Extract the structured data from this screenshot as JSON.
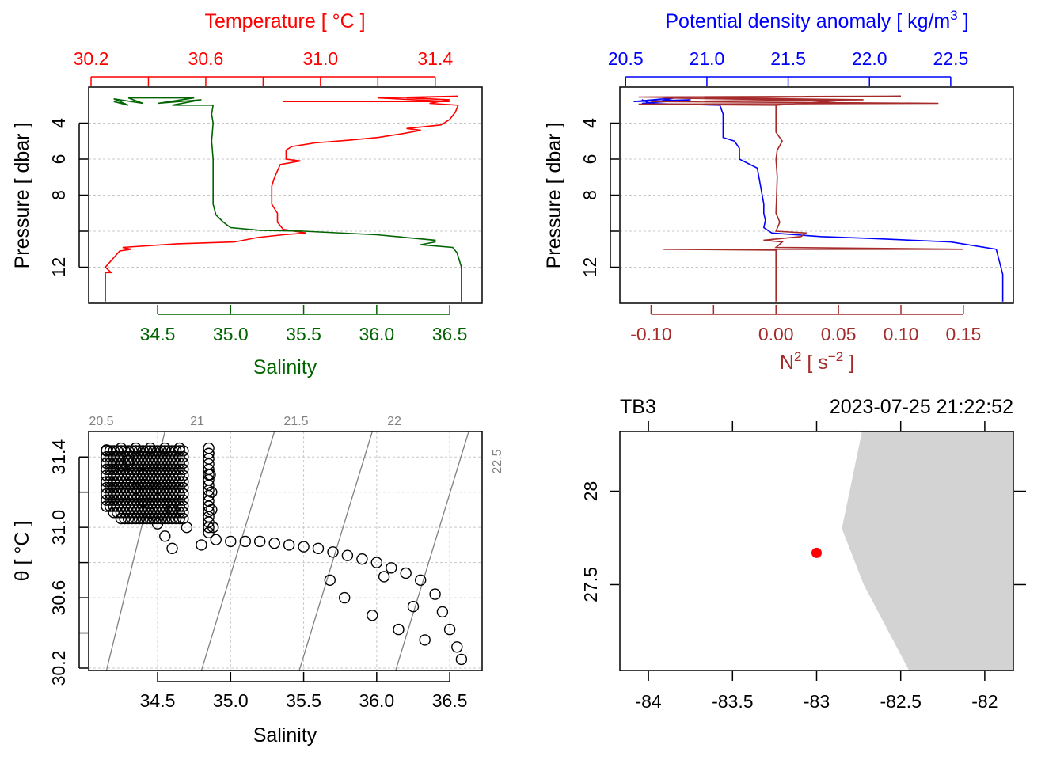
{
  "colors": {
    "temperature": "#ff0000",
    "salinity": "#006400",
    "density": "#0000ff",
    "n2": "#a52a2a",
    "grid": "#c8c8c8",
    "isopycnal": "#808080",
    "land": "#d3d3d3",
    "station": "#ff0000"
  },
  "chart_data": [
    {
      "id": "temp-sal-profile",
      "type": "line",
      "title": "Temperature [ °C ]",
      "top_axis": {
        "label": "Temperature [ °C ]",
        "ticks": [
          "30.2",
          "30.6",
          "31.0",
          "31.4"
        ],
        "tick_values": [
          30.2,
          30.6,
          31.0,
          31.4
        ],
        "range": [
          30.2,
          31.5
        ]
      },
      "bottom_axis": {
        "label": "Salinity",
        "ticks": [
          "34.5",
          "35.0",
          "35.5",
          "36.0",
          "36.5"
        ],
        "tick_values": [
          34.5,
          35.0,
          35.5,
          36.0,
          36.5
        ],
        "range": [
          34.05,
          36.7
        ]
      },
      "y_axis": {
        "label": "Pressure [ dbar ]",
        "ticks": [
          "4",
          "6",
          "8",
          "12"
        ],
        "tick_values": [
          4,
          6,
          8,
          12
        ],
        "range": [
          14.0,
          2.0
        ],
        "inverted": true
      },
      "series": [
        {
          "name": "Temperature",
          "points": [
            [
              30.25,
              13.9
            ],
            [
              30.25,
              12.3
            ],
            [
              30.27,
              12.3
            ],
            [
              30.25,
              12.0
            ],
            [
              30.3,
              11.1
            ],
            [
              30.34,
              11.0
            ],
            [
              30.31,
              10.9
            ],
            [
              30.5,
              10.7
            ],
            [
              30.7,
              10.6
            ],
            [
              30.78,
              10.35
            ],
            [
              30.87,
              10.2
            ],
            [
              30.95,
              10.1
            ],
            [
              30.87,
              9.9
            ],
            [
              30.85,
              9.5
            ],
            [
              30.85,
              9.0
            ],
            [
              30.83,
              8.5
            ],
            [
              30.83,
              7.5
            ],
            [
              30.84,
              7.0
            ],
            [
              30.86,
              6.3
            ],
            [
              30.93,
              6.1
            ],
            [
              30.88,
              6.0
            ],
            [
              30.88,
              5.5
            ],
            [
              30.9,
              5.3
            ],
            [
              30.98,
              5.1
            ],
            [
              31.1,
              4.95
            ],
            [
              31.2,
              4.8
            ],
            [
              31.28,
              4.6
            ],
            [
              31.35,
              4.4
            ],
            [
              31.3,
              4.3
            ],
            [
              31.42,
              4.1
            ],
            [
              31.45,
              3.8
            ],
            [
              31.47,
              3.4
            ],
            [
              31.48,
              3.0
            ],
            [
              31.38,
              2.9
            ],
            [
              31.45,
              2.7
            ],
            [
              31.3,
              2.6
            ],
            [
              31.48,
              2.5
            ],
            [
              31.2,
              2.6
            ],
            [
              31.45,
              2.8
            ],
            [
              30.87,
              2.8
            ]
          ]
        },
        {
          "name": "Salinity",
          "points": [
            [
              36.58,
              13.9
            ],
            [
              36.58,
              12.0
            ],
            [
              36.55,
              11.2
            ],
            [
              36.52,
              10.9
            ],
            [
              36.3,
              10.75
            ],
            [
              36.4,
              10.6
            ],
            [
              36.4,
              10.5
            ],
            [
              36.0,
              10.2
            ],
            [
              35.5,
              10.0
            ],
            [
              35.2,
              9.95
            ],
            [
              35.0,
              9.8
            ],
            [
              34.95,
              9.5
            ],
            [
              34.9,
              9.1
            ],
            [
              34.88,
              8.5
            ],
            [
              34.88,
              6.0
            ],
            [
              34.87,
              5.0
            ],
            [
              34.88,
              4.0
            ],
            [
              34.87,
              3.5
            ],
            [
              34.88,
              3.0
            ],
            [
              34.6,
              3.0
            ],
            [
              34.8,
              2.7
            ],
            [
              34.5,
              2.9
            ],
            [
              34.75,
              2.6
            ],
            [
              34.3,
              2.6
            ],
            [
              34.4,
              2.9
            ],
            [
              34.2,
              2.65
            ],
            [
              34.3,
              3.0
            ],
            [
              34.2,
              2.8
            ]
          ]
        }
      ]
    },
    {
      "id": "density-n2-profile",
      "type": "line",
      "top_axis": {
        "label": "Potential density anomaly [ kg/m",
        "label_sup": "3",
        "label_end": " ]",
        "ticks": [
          "20.5",
          "21.0",
          "21.5",
          "22.0",
          "22.5"
        ],
        "tick_values": [
          20.5,
          21.0,
          21.5,
          22.0,
          22.5
        ],
        "range": [
          20.45,
          22.9
        ]
      },
      "bottom_axis": {
        "label": "N",
        "label_sup": "2",
        "label_mid": " [ s",
        "label_sup2": "−2",
        "label_end": " ]",
        "ticks": [
          "-0.10",
          "0.00",
          "0.05",
          "0.10",
          "0.15"
        ],
        "tick_values": [
          -0.1,
          0.0,
          0.05,
          0.1,
          0.15
        ],
        "extra_ticks": [
          -0.05
        ],
        "range": [
          -0.125,
          0.19
        ]
      },
      "y_axis": {
        "label": "Pressure [ dbar ]",
        "ticks": [
          "4",
          "6",
          "8",
          "12"
        ],
        "tick_values": [
          4,
          6,
          8,
          12
        ],
        "range": [
          14.0,
          2.0
        ],
        "inverted": true
      },
      "series": [
        {
          "name": "Potential density anomaly",
          "points": [
            [
              22.82,
              13.9
            ],
            [
              22.82,
              12.4
            ],
            [
              22.8,
              11.7
            ],
            [
              22.78,
              11.0
            ],
            [
              22.5,
              10.6
            ],
            [
              22.0,
              10.4
            ],
            [
              21.7,
              10.3
            ],
            [
              21.4,
              10.1
            ],
            [
              21.35,
              9.8
            ],
            [
              21.36,
              9.4
            ],
            [
              21.35,
              9.0
            ],
            [
              21.35,
              8.5
            ],
            [
              21.33,
              7.5
            ],
            [
              21.31,
              6.5
            ],
            [
              21.2,
              6.0
            ],
            [
              21.2,
              5.4
            ],
            [
              21.17,
              5.0
            ],
            [
              21.1,
              4.8
            ],
            [
              21.1,
              4.3
            ],
            [
              21.1,
              3.5
            ],
            [
              21.08,
              3.0
            ],
            [
              20.6,
              2.9
            ],
            [
              20.9,
              2.7
            ],
            [
              20.55,
              2.8
            ],
            [
              20.8,
              2.6
            ],
            [
              20.65,
              2.9
            ],
            [
              20.6,
              2.7
            ]
          ]
        },
        {
          "name": "N2",
          "points": [
            [
              0.0,
              13.9
            ],
            [
              0.0,
              12.0
            ],
            [
              0.0,
              11.2
            ],
            [
              0.0,
              11.05
            ],
            [
              -0.09,
              11.0
            ],
            [
              0.15,
              11.0
            ],
            [
              0.0,
              10.9
            ],
            [
              0.005,
              10.6
            ],
            [
              -0.01,
              10.5
            ],
            [
              0.02,
              10.3
            ],
            [
              0.024,
              10.1
            ],
            [
              0.0,
              10.0
            ],
            [
              0.003,
              9.5
            ],
            [
              0.0,
              9.0
            ],
            [
              0.001,
              7.0
            ],
            [
              0.0,
              6.0
            ],
            [
              0.001,
              5.5
            ],
            [
              0.005,
              5.0
            ],
            [
              0.0,
              4.5
            ],
            [
              0.0,
              3.5
            ],
            [
              0.0,
              3.0
            ],
            [
              -0.11,
              2.95
            ],
            [
              0.13,
              2.9
            ],
            [
              -0.1,
              2.8
            ],
            [
              0.07,
              2.7
            ],
            [
              -0.11,
              2.55
            ],
            [
              0.1,
              2.5
            ],
            [
              -0.09,
              2.6
            ],
            [
              0.05,
              2.75
            ],
            [
              0.0,
              3.0
            ]
          ]
        }
      ]
    },
    {
      "id": "ts-diagram",
      "type": "scatter",
      "x_axis": {
        "label": "Salinity",
        "ticks": [
          "34.5",
          "35.0",
          "35.5",
          "36.0",
          "36.5"
        ],
        "tick_values": [
          34.5,
          35.0,
          35.5,
          36.0,
          36.5
        ],
        "range": [
          34.05,
          36.7
        ]
      },
      "y_axis": {
        "label": "θ [ °C ]",
        "ticks": [
          "30.2",
          "30.6",
          "31.0",
          "31.4"
        ],
        "tick_values": [
          30.2,
          30.6,
          31.0,
          31.4
        ],
        "range": [
          30.2,
          31.5
        ]
      },
      "isopycnals": [
        {
          "label": "20.5",
          "x_bottom": 34.15,
          "x_top": 34.55
        },
        {
          "label": "21",
          "x_bottom": 34.8,
          "x_top": 35.3
        },
        {
          "label": "21.5",
          "x_bottom": 35.47,
          "x_top": 35.97
        },
        {
          "label": "22",
          "x_bottom": 36.13,
          "x_top": 36.63
        },
        {
          "label": "22.5",
          "x_bottom": 36.8,
          "x_top": 37.3
        }
      ],
      "points": [
        [
          34.15,
          31.44
        ],
        [
          34.2,
          31.4
        ],
        [
          34.25,
          31.35
        ],
        [
          34.3,
          31.3
        ],
        [
          34.35,
          31.22
        ],
        [
          34.4,
          31.15
        ],
        [
          34.45,
          31.08
        ],
        [
          34.5,
          31.02
        ],
        [
          34.55,
          30.95
        ],
        [
          34.6,
          30.88
        ],
        [
          34.25,
          31.45
        ],
        [
          34.35,
          31.45
        ],
        [
          34.45,
          31.45
        ],
        [
          34.55,
          31.45
        ],
        [
          34.65,
          31.45
        ],
        [
          34.3,
          31.38
        ],
        [
          34.4,
          31.3
        ],
        [
          34.5,
          31.22
        ],
        [
          34.6,
          31.1
        ],
        [
          34.7,
          31.0
        ],
        [
          34.8,
          30.9
        ],
        [
          34.85,
          31.42
        ],
        [
          34.86,
          31.3
        ],
        [
          34.87,
          31.2
        ],
        [
          34.87,
          31.1
        ],
        [
          34.88,
          31.0
        ],
        [
          34.9,
          30.93
        ],
        [
          35.0,
          30.92
        ],
        [
          35.1,
          30.92
        ],
        [
          35.2,
          30.92
        ],
        [
          35.3,
          30.91
        ],
        [
          35.4,
          30.9
        ],
        [
          35.5,
          30.89
        ],
        [
          35.6,
          30.88
        ],
        [
          35.7,
          30.86
        ],
        [
          35.8,
          30.84
        ],
        [
          35.9,
          30.82
        ],
        [
          36.0,
          30.8
        ],
        [
          36.1,
          30.77
        ],
        [
          36.2,
          30.74
        ],
        [
          36.3,
          30.7
        ],
        [
          36.4,
          30.62
        ],
        [
          36.45,
          30.52
        ],
        [
          36.5,
          30.42
        ],
        [
          36.55,
          30.32
        ],
        [
          36.58,
          30.25
        ],
        [
          35.68,
          30.7
        ],
        [
          35.78,
          30.6
        ],
        [
          35.97,
          30.5
        ],
        [
          36.15,
          30.42
        ],
        [
          36.33,
          30.36
        ],
        [
          36.25,
          30.55
        ],
        [
          36.05,
          30.72
        ]
      ]
    },
    {
      "id": "station-map",
      "type": "scatter",
      "station_label": "TB3",
      "timestamp": "2023-07-25 21:22:52",
      "x_axis": {
        "ticks": [
          "-84",
          "-83.5",
          "-83",
          "-82.5",
          "-82"
        ],
        "tick_values": [
          -84,
          -83.5,
          -83,
          -82.5,
          -82
        ],
        "range": [
          -84.17,
          -81.83
        ]
      },
      "y_axis": {
        "ticks": [
          "28",
          "27.5"
        ],
        "tick_values": [
          28,
          27.5
        ],
        "range": [
          27.04,
          28.32
        ]
      },
      "land_polygon": [
        [
          -82.73,
          28.32
        ],
        [
          -81.83,
          28.32
        ],
        [
          -81.83,
          27.04
        ],
        [
          -82.45,
          27.04
        ],
        [
          -82.72,
          27.5
        ],
        [
          -82.85,
          27.8
        ]
      ],
      "station": {
        "lon": -83.0,
        "lat": 27.67
      }
    }
  ]
}
